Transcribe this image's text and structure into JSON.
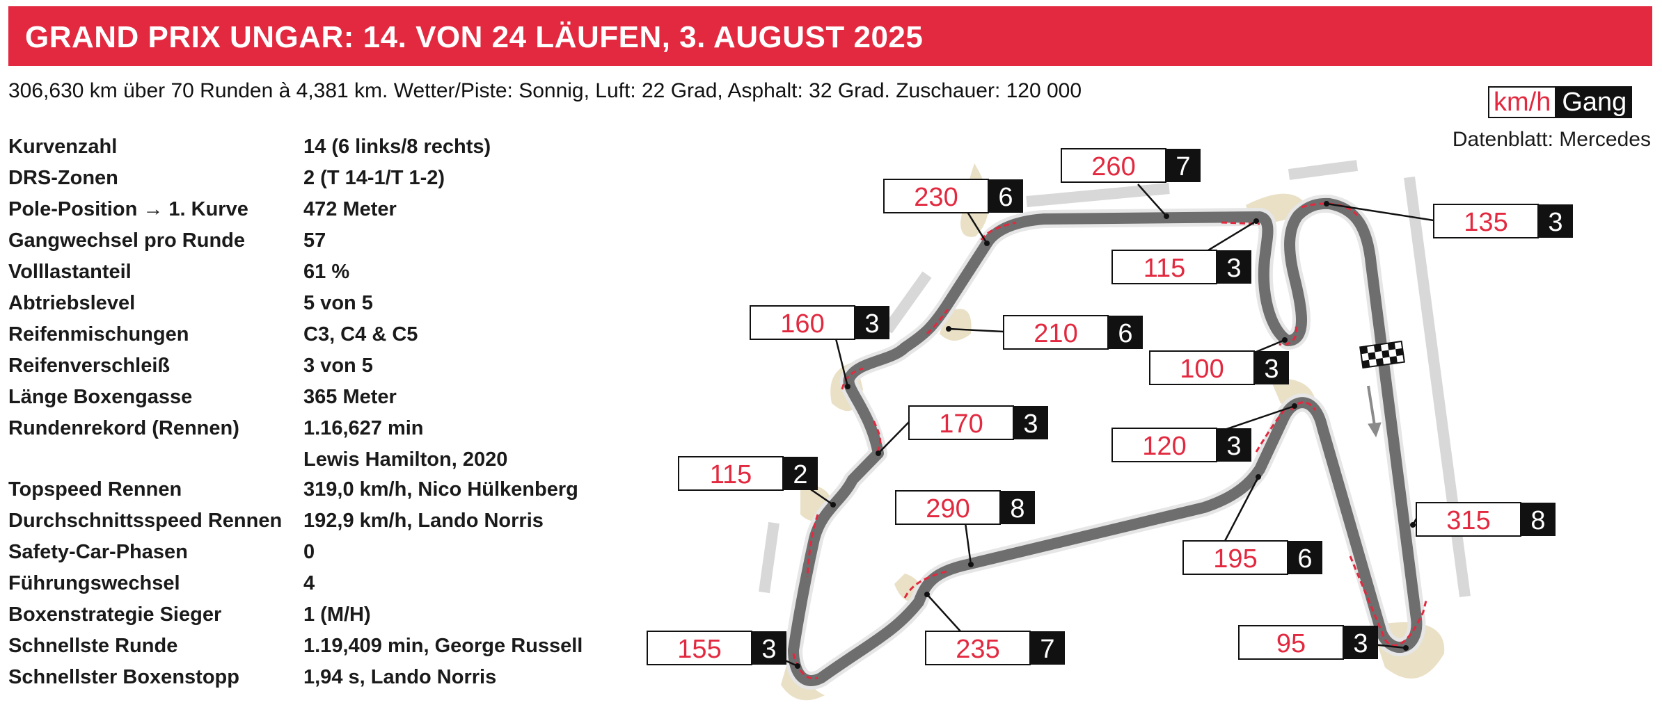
{
  "header": {
    "title": "GRAND PRIX UNGAR: 14. VON 24 LÄUFEN, 3. AUGUST 2025"
  },
  "subline": "306,630 km über 70 Runden à 4,381 km. Wetter/Piste: Sonnig, Luft: 22 Grad, Asphalt: 32 Grad. Zuschauer: 120 000",
  "legend": {
    "speed_unit": "km/h",
    "gear_label": "Gang"
  },
  "source": "Datenblatt: Mercedes",
  "facts": [
    {
      "label": "Kurvenzahl",
      "value": "14 (6 links/8 rechts)"
    },
    {
      "label": "DRS-Zonen",
      "value": "2 (T 14-1/T 1-2)"
    },
    {
      "label": "Pole-Position → 1. Kurve",
      "value": "472 Meter"
    },
    {
      "label": "Gangwechsel pro Runde",
      "value": "57"
    },
    {
      "label": "Volllastanteil",
      "value": "61 %"
    },
    {
      "label": "Abtriebslevel",
      "value": "5 von 5"
    },
    {
      "label": "Reifenmischungen",
      "value": "C3, C4 & C5"
    },
    {
      "label": "Reifenverschleiß",
      "value": "3 von 5"
    },
    {
      "label": "Länge Boxengasse",
      "value": "365 Meter"
    },
    {
      "label": "Rundenrekord (Rennen)",
      "value": "1.16,627 min",
      "value2": "Lewis Hamilton, 2020"
    },
    {
      "label": "Topspeed Rennen",
      "value": "319,0 km/h, Nico Hülkenberg"
    },
    {
      "label": "Durchschnittsspeed Rennen",
      "value": "192,9 km/h, Lando Norris"
    },
    {
      "label": "Safety-Car-Phasen",
      "value": "0"
    },
    {
      "label": "Führungswechsel",
      "value": "4"
    },
    {
      "label": "Boxenstrategie Sieger",
      "value": "1 (M/H)"
    },
    {
      "label": "Schnellste Runde",
      "value": "1.19,409 min, George Russell"
    },
    {
      "label": "Schnellster Boxenstopp",
      "value": "1,94 s, Lando Norris"
    }
  ],
  "colors": {
    "accent": "#e2293f",
    "track": "#6e6e6e",
    "runoff": "#e9e0c6",
    "barrier": "#d8d8d8"
  },
  "callouts": [
    {
      "speed": "260",
      "gear": "7"
    },
    {
      "speed": "230",
      "gear": "6"
    },
    {
      "speed": "135",
      "gear": "3"
    },
    {
      "speed": "115",
      "gear": "3"
    },
    {
      "speed": "160",
      "gear": "3"
    },
    {
      "speed": "210",
      "gear": "6"
    },
    {
      "speed": "100",
      "gear": "3"
    },
    {
      "speed": "170",
      "gear": "3"
    },
    {
      "speed": "120",
      "gear": "3"
    },
    {
      "speed": "115",
      "gear": "2"
    },
    {
      "speed": "290",
      "gear": "8"
    },
    {
      "speed": "315",
      "gear": "8"
    },
    {
      "speed": "195",
      "gear": "6"
    },
    {
      "speed": "155",
      "gear": "3"
    },
    {
      "speed": "235",
      "gear": "7"
    },
    {
      "speed": "95",
      "gear": "3"
    }
  ]
}
